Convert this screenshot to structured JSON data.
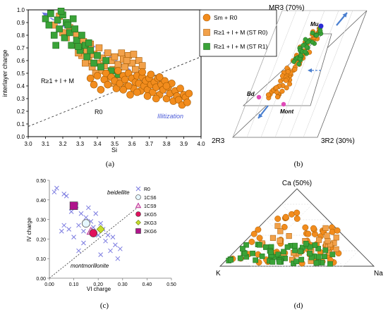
{
  "chart_data": [
    {
      "panel": "a",
      "type": "scatter",
      "caption": "(a)",
      "xlabel": "Si",
      "ylabel": "interlayer charge",
      "xlim": [
        3.0,
        4.0
      ],
      "ylim": [
        0.0,
        1.0
      ],
      "xticks": [
        "3.0",
        "3.1",
        "3.2",
        "3.3",
        "3.4",
        "3.5",
        "3.6",
        "3.7",
        "3.8",
        "3.9",
        "4.0"
      ],
      "yticks": [
        "0.0",
        "0.1",
        "0.2",
        "0.3",
        "0.4",
        "0.5",
        "0.6",
        "0.7",
        "0.8",
        "0.9",
        "1.0"
      ],
      "grid": false,
      "legend_position": "top-right",
      "region_labels": [
        "R≥1 + I + M",
        "R0"
      ],
      "divider_line": [
        [
          3.0,
          0.08
        ],
        [
          4.0,
          0.63
        ]
      ],
      "trend_label": "Illitization",
      "trend_arrow": [
        [
          3.9,
          0.25
        ],
        [
          3.08,
          0.98
        ]
      ],
      "series": [
        {
          "name": "Sm + R0",
          "marker": "circle",
          "color": "#f28c1d",
          "points": [
            [
              3.36,
              0.46
            ],
            [
              3.38,
              0.41
            ],
            [
              3.4,
              0.48
            ],
            [
              3.42,
              0.37
            ],
            [
              3.44,
              0.45
            ],
            [
              3.45,
              0.5
            ],
            [
              3.46,
              0.41
            ],
            [
              3.48,
              0.47
            ],
            [
              3.5,
              0.44
            ],
            [
              3.51,
              0.38
            ],
            [
              3.52,
              0.52
            ],
            [
              3.53,
              0.42
            ],
            [
              3.55,
              0.48
            ],
            [
              3.56,
              0.45
            ],
            [
              3.57,
              0.4
            ],
            [
              3.58,
              0.5
            ],
            [
              3.6,
              0.46
            ],
            [
              3.61,
              0.38
            ],
            [
              3.62,
              0.43
            ],
            [
              3.63,
              0.48
            ],
            [
              3.64,
              0.42
            ],
            [
              3.65,
              0.36
            ],
            [
              3.66,
              0.47
            ],
            [
              3.67,
              0.4
            ],
            [
              3.68,
              0.44
            ],
            [
              3.69,
              0.37
            ],
            [
              3.7,
              0.46
            ],
            [
              3.71,
              0.41
            ],
            [
              3.72,
              0.35
            ],
            [
              3.73,
              0.43
            ],
            [
              3.74,
              0.39
            ],
            [
              3.75,
              0.46
            ],
            [
              3.76,
              0.33
            ],
            [
              3.77,
              0.41
            ],
            [
              3.78,
              0.37
            ],
            [
              3.79,
              0.44
            ],
            [
              3.8,
              0.3
            ],
            [
              3.81,
              0.39
            ],
            [
              3.82,
              0.34
            ],
            [
              3.83,
              0.42
            ],
            [
              3.84,
              0.28
            ],
            [
              3.85,
              0.36
            ],
            [
              3.86,
              0.32
            ],
            [
              3.87,
              0.29
            ],
            [
              3.88,
              0.38
            ],
            [
              3.89,
              0.25
            ],
            [
              3.9,
              0.33
            ],
            [
              3.91,
              0.31
            ],
            [
              3.92,
              0.27
            ],
            [
              3.93,
              0.34
            ],
            [
              3.58,
              0.4
            ],
            [
              3.63,
              0.35
            ],
            [
              3.74,
              0.3
            ],
            [
              3.8,
              0.4
            ],
            [
              3.66,
              0.51
            ],
            [
              3.71,
              0.49
            ],
            [
              3.76,
              0.47
            ],
            [
              3.55,
              0.37
            ],
            [
              3.59,
              0.33
            ],
            [
              3.69,
              0.32
            ]
          ]
        },
        {
          "name": "R≥1 + I + M (ST R0)",
          "marker": "square",
          "color": "#f2a14a",
          "points": [
            [
              3.15,
              0.88
            ],
            [
              3.18,
              0.95
            ],
            [
              3.2,
              0.82
            ],
            [
              3.22,
              0.78
            ],
            [
              3.24,
              0.86
            ],
            [
              3.26,
              0.72
            ],
            [
              3.28,
              0.8
            ],
            [
              3.3,
              0.7
            ],
            [
              3.31,
              0.64
            ],
            [
              3.32,
              0.75
            ],
            [
              3.34,
              0.68
            ],
            [
              3.35,
              0.6
            ],
            [
              3.36,
              0.73
            ],
            [
              3.37,
              0.55
            ],
            [
              3.38,
              0.65
            ],
            [
              3.4,
              0.58
            ],
            [
              3.41,
              0.7
            ],
            [
              3.42,
              0.52
            ],
            [
              3.43,
              0.62
            ],
            [
              3.44,
              0.56
            ],
            [
              3.46,
              0.66
            ],
            [
              3.47,
              0.5
            ],
            [
              3.48,
              0.6
            ],
            [
              3.49,
              0.53
            ],
            [
              3.5,
              0.63
            ],
            [
              3.52,
              0.57
            ],
            [
              3.53,
              0.47
            ],
            [
              3.55,
              0.61
            ],
            [
              3.56,
              0.55
            ],
            [
              3.58,
              0.64
            ],
            [
              3.6,
              0.58
            ],
            [
              3.62,
              0.53
            ],
            [
              3.64,
              0.6
            ],
            [
              3.66,
              0.56
            ],
            [
              3.45,
              0.45
            ],
            [
              3.5,
              0.42
            ],
            [
              3.39,
              0.5
            ],
            [
              3.33,
              0.58
            ],
            [
              3.29,
              0.66
            ],
            [
              3.54,
              0.66
            ],
            [
              3.57,
              0.6
            ],
            [
              3.61,
              0.65
            ]
          ]
        },
        {
          "name": "R≥1 + I + M (ST R1)",
          "marker": "square",
          "color": "#3aa338",
          "points": [
            [
              3.1,
              0.93
            ],
            [
              3.12,
              0.88
            ],
            [
              3.13,
              0.97
            ],
            [
              3.15,
              0.8
            ],
            [
              3.17,
              0.92
            ],
            [
              3.18,
              0.85
            ],
            [
              3.2,
              0.96
            ],
            [
              3.21,
              0.78
            ],
            [
              3.22,
              0.9
            ],
            [
              3.24,
              0.82
            ],
            [
              3.25,
              0.72
            ],
            [
              3.27,
              0.85
            ],
            [
              3.28,
              0.76
            ],
            [
              3.3,
              0.68
            ],
            [
              3.31,
              0.8
            ],
            [
              3.33,
              0.72
            ],
            [
              3.34,
              0.63
            ],
            [
              3.36,
              0.68
            ],
            [
              3.38,
              0.58
            ],
            [
              3.4,
              0.64
            ],
            [
              3.42,
              0.55
            ],
            [
              3.45,
              0.6
            ],
            [
              3.48,
              0.52
            ],
            [
              3.52,
              0.49
            ],
            [
              3.19,
              0.99
            ],
            [
              3.23,
              0.88
            ],
            [
              3.26,
              0.93
            ],
            [
              3.16,
              0.72
            ],
            [
              3.29,
              0.71
            ],
            [
              3.35,
              0.74
            ]
          ]
        }
      ]
    },
    {
      "panel": "b",
      "type": "scatter",
      "caption": "(b)",
      "chart_kind": "ternary-3d",
      "axis_labels": [
        "MR3 (70%)",
        "2R3",
        "3R2 (30%)"
      ],
      "end_members": [
        {
          "name": "Mu",
          "color": "#2b2bd6"
        },
        {
          "name": "Bd",
          "color": "#e04ab8"
        },
        {
          "name": "Mont",
          "color": "#e04ab8"
        }
      ],
      "series": [
        {
          "name": "Sm + R0",
          "marker": "circle",
          "color": "#f28c1d"
        },
        {
          "name": "R≥1 + I + M (ST R1)",
          "marker": "circle",
          "color": "#3aa338"
        }
      ]
    },
    {
      "panel": "c",
      "type": "scatter",
      "caption": "(c)",
      "xlabel": "VI charge",
      "ylabel": "IV charge",
      "xlim": [
        0.0,
        0.5
      ],
      "ylim": [
        0.0,
        0.5
      ],
      "xticks": [
        "0.00",
        "0.10",
        "0.20",
        "0.30",
        "0.40",
        "0.50"
      ],
      "yticks": [
        "0.00",
        "0.10",
        "0.20",
        "0.30",
        "0.40",
        "0.50"
      ],
      "grid": false,
      "legend_position": "right",
      "region_labels": [
        "beidellite",
        "montmorillonite"
      ],
      "divider_line": [
        [
          0.0,
          0.0
        ],
        [
          0.37,
          0.37
        ]
      ],
      "series": [
        {
          "name": "R0",
          "marker": "x",
          "color": "#7a7ae0",
          "points": [
            [
              0.02,
              0.44
            ],
            [
              0.03,
              0.46
            ],
            [
              0.06,
              0.43
            ],
            [
              0.07,
              0.42
            ],
            [
              0.09,
              0.34
            ],
            [
              0.11,
              0.37
            ],
            [
              0.12,
              0.27
            ],
            [
              0.13,
              0.33
            ],
            [
              0.14,
              0.24
            ],
            [
              0.15,
              0.31
            ],
            [
              0.16,
              0.36
            ],
            [
              0.17,
              0.29
            ],
            [
              0.18,
              0.26
            ],
            [
              0.19,
              0.33
            ],
            [
              0.2,
              0.22
            ],
            [
              0.21,
              0.28
            ],
            [
              0.22,
              0.25
            ],
            [
              0.23,
              0.19
            ],
            [
              0.24,
              0.22
            ],
            [
              0.25,
              0.14
            ],
            [
              0.26,
              0.21
            ],
            [
              0.27,
              0.17
            ],
            [
              0.28,
              0.1
            ],
            [
              0.29,
              0.15
            ],
            [
              0.06,
              0.27
            ],
            [
              0.08,
              0.25
            ],
            [
              0.1,
              0.21
            ],
            [
              0.12,
              0.14
            ],
            [
              0.14,
              0.18
            ],
            [
              0.05,
              0.24
            ],
            [
              0.21,
              0.12
            ]
          ]
        },
        {
          "name": "1CS6",
          "marker": "circle",
          "color": "#e6f7ff",
          "points": [
            [
              0.15,
              0.28
            ]
          ]
        },
        {
          "name": "1CS9",
          "marker": "triangle",
          "color": "#f4c6dd",
          "points": [
            [
              0.17,
              0.24
            ]
          ]
        },
        {
          "name": "1KG5",
          "marker": "circle",
          "color": "#e0105c",
          "points": [
            [
              0.18,
              0.23
            ]
          ]
        },
        {
          "name": "2KG3",
          "marker": "diamond",
          "color": "#c7dd2a",
          "points": [
            [
              0.21,
              0.25
            ]
          ]
        },
        {
          "name": "2KG6",
          "marker": "square",
          "color": "#b0148c",
          "points": [
            [
              0.1,
              0.37
            ]
          ]
        }
      ]
    },
    {
      "panel": "d",
      "type": "scatter",
      "caption": "(d)",
      "chart_kind": "ternary",
      "axis_labels": [
        "Ca (50%)",
        "K",
        "Na"
      ],
      "series": [
        {
          "name": "Sm + R0",
          "marker": "circle",
          "color": "#f28c1d"
        },
        {
          "name": "R≥1 + I + M (ST R0)",
          "marker": "square",
          "color": "#f2a14a"
        },
        {
          "name": "R≥1 + I + M (ST R1)",
          "marker": "square",
          "color": "#3aa338"
        }
      ]
    }
  ]
}
